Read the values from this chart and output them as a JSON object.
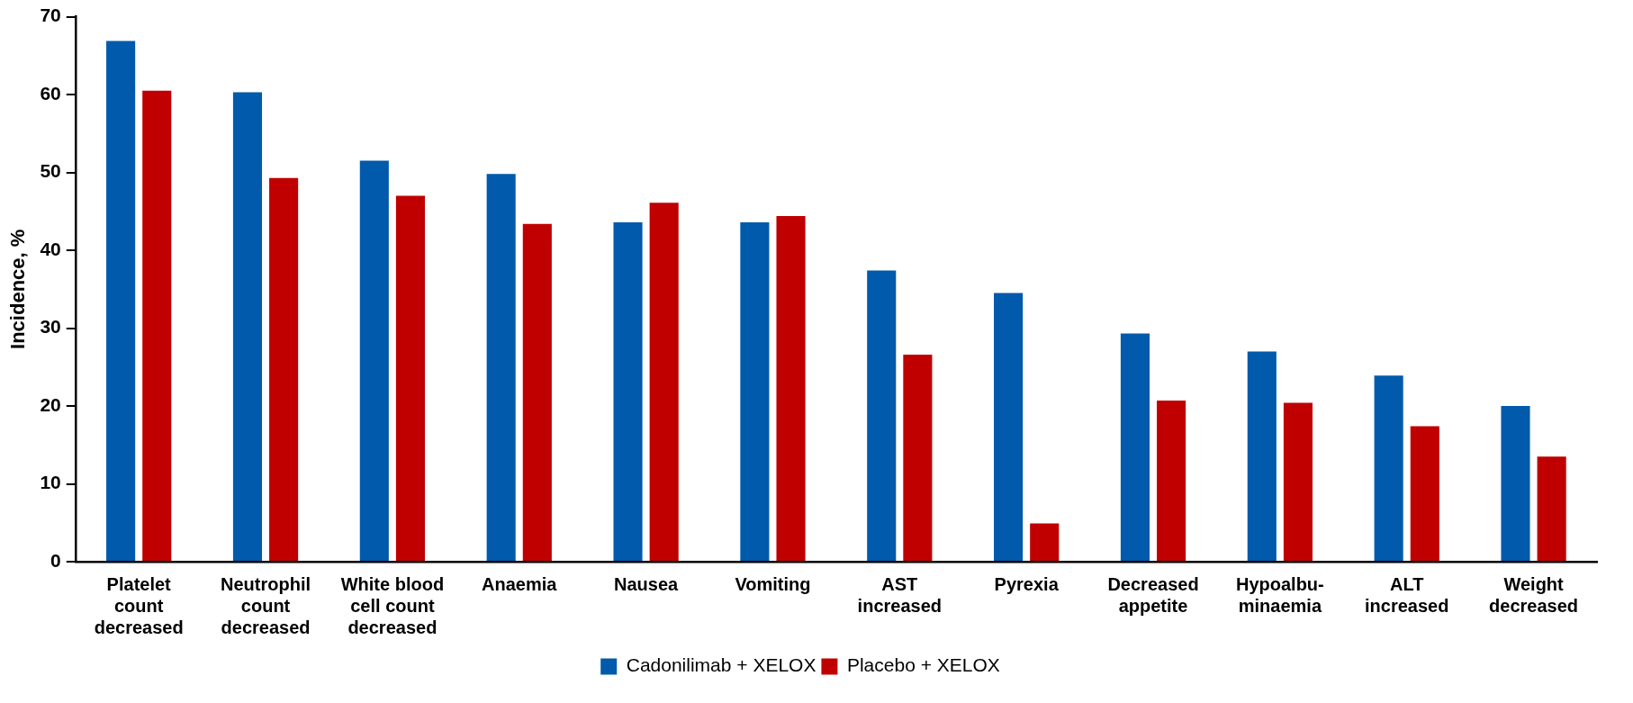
{
  "chart_data": {
    "type": "bar",
    "ylabel": "Incidence, %",
    "categories": [
      "Platelet count decreased",
      "Neutrophil count decreased",
      "White blood cell count decreased",
      "Anaemia",
      "Nausea",
      "Vomiting",
      "AST increased",
      "Pyrexia",
      "Decreased appetite",
      "Hypoalbu-minaemia",
      "ALT increased",
      "Weight decreased"
    ],
    "series": [
      {
        "name": "Cadonilimab + XELOX",
        "color": "#015aab",
        "values": [
          66.9,
          60.3,
          51.5,
          49.8,
          43.6,
          43.6,
          37.4,
          34.5,
          29.3,
          27.0,
          23.9,
          20.0
        ]
      },
      {
        "name": "Placebo + XELOX",
        "color": "#c00000",
        "values": [
          60.5,
          49.3,
          47.0,
          43.4,
          46.1,
          44.4,
          26.6,
          4.9,
          20.7,
          20.4,
          17.4,
          13.5
        ]
      }
    ],
    "ylim": [
      0,
      70
    ],
    "yticks": [
      0,
      10,
      20,
      30,
      40,
      50,
      60,
      70
    ],
    "grid": false,
    "legend": "bottom"
  }
}
